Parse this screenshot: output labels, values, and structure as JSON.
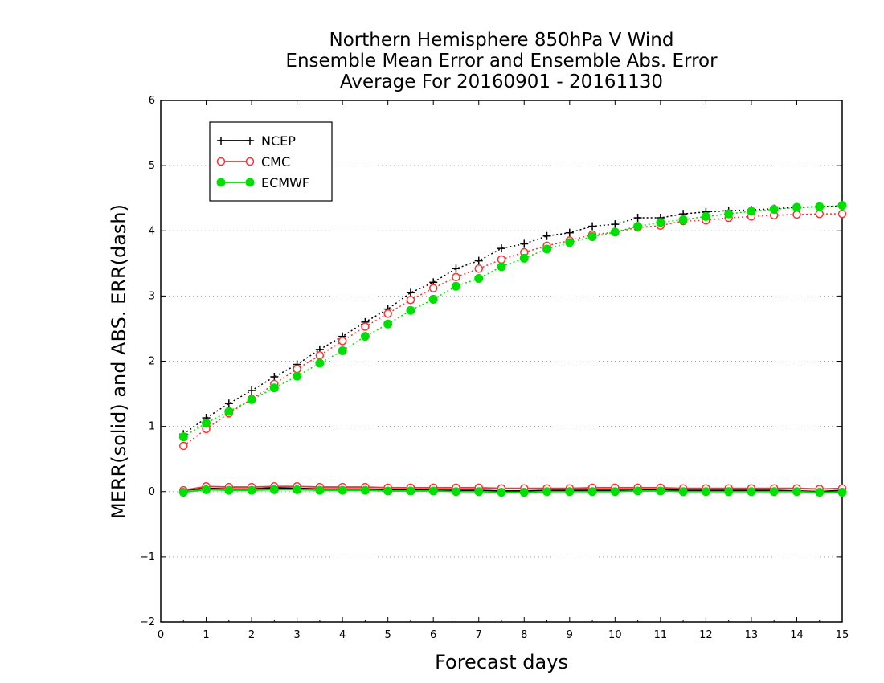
{
  "chart_data": {
    "type": "line",
    "title": [
      "Northern Hemisphere 850hPa V Wind",
      "Ensemble Mean Error and Ensemble Abs. Error",
      "Average For 20160901 - 20161130"
    ],
    "xlabel": "Forecast days",
    "ylabel": "MERR(solid) and ABS. ERR(dash)",
    "xlim": [
      0,
      15
    ],
    "ylim": [
      -2,
      6
    ],
    "xticks": [
      "0",
      "1",
      "2",
      "3",
      "4",
      "5",
      "6",
      "7",
      "8",
      "9",
      "10",
      "11",
      "12",
      "13",
      "14",
      "15"
    ],
    "yticks": [
      "−2",
      "−1",
      "0",
      "1",
      "2",
      "3",
      "4",
      "5",
      "6"
    ],
    "grid": "horizontal dotted",
    "legend_position": "top-left",
    "x": [
      0.5,
      1,
      1.5,
      2,
      2.5,
      3,
      3.5,
      4,
      4.5,
      5,
      5.5,
      6,
      6.5,
      7,
      7.5,
      8,
      8.5,
      9,
      9.5,
      10,
      10.5,
      11,
      11.5,
      12,
      12.5,
      13,
      13.5,
      14,
      14.5,
      15
    ],
    "series": [
      {
        "name": "NCEP",
        "color": "#000000",
        "marker": "plus",
        "abs_err": [
          0.88,
          1.13,
          1.35,
          1.55,
          1.76,
          1.95,
          2.18,
          2.38,
          2.6,
          2.8,
          3.05,
          3.21,
          3.42,
          3.54,
          3.73,
          3.8,
          3.92,
          3.97,
          4.07,
          4.1,
          4.2,
          4.2,
          4.26,
          4.29,
          4.31,
          4.32,
          4.34,
          4.36,
          4.37,
          4.38
        ],
        "mean_err": [
          0.02,
          0.05,
          0.04,
          0.04,
          0.06,
          0.05,
          0.04,
          0.04,
          0.04,
          0.03,
          0.03,
          0.02,
          0.02,
          0.02,
          0.01,
          0.01,
          0.02,
          0.02,
          0.02,
          0.02,
          0.02,
          0.03,
          0.02,
          0.02,
          0.02,
          0.02,
          0.02,
          0.01,
          0.0,
          0.02
        ]
      },
      {
        "name": "CMC",
        "color": "#ff3030",
        "marker": "open-circle",
        "abs_err": [
          0.7,
          0.96,
          1.2,
          1.42,
          1.65,
          1.88,
          2.09,
          2.31,
          2.53,
          2.73,
          2.94,
          3.12,
          3.29,
          3.42,
          3.56,
          3.67,
          3.77,
          3.85,
          3.94,
          3.98,
          4.05,
          4.08,
          4.15,
          4.16,
          4.2,
          4.22,
          4.24,
          4.25,
          4.26,
          4.26
        ],
        "mean_err": [
          0.02,
          0.08,
          0.07,
          0.07,
          0.08,
          0.08,
          0.07,
          0.07,
          0.07,
          0.06,
          0.06,
          0.06,
          0.06,
          0.06,
          0.05,
          0.05,
          0.05,
          0.05,
          0.06,
          0.06,
          0.06,
          0.06,
          0.05,
          0.05,
          0.05,
          0.05,
          0.05,
          0.05,
          0.04,
          0.05
        ]
      },
      {
        "name": "ECMWF",
        "color": "#00e000",
        "marker": "filled-circle",
        "abs_err": [
          0.84,
          1.05,
          1.23,
          1.41,
          1.59,
          1.77,
          1.97,
          2.16,
          2.38,
          2.57,
          2.78,
          2.95,
          3.15,
          3.27,
          3.45,
          3.58,
          3.72,
          3.82,
          3.91,
          3.98,
          4.07,
          4.13,
          4.17,
          4.22,
          4.26,
          4.3,
          4.33,
          4.36,
          4.37,
          4.39
        ],
        "mean_err": [
          -0.01,
          0.03,
          0.02,
          0.02,
          0.03,
          0.03,
          0.02,
          0.02,
          0.02,
          0.01,
          0.01,
          0.01,
          0.0,
          0.0,
          -0.01,
          -0.01,
          0.0,
          0.0,
          0.0,
          0.0,
          0.01,
          0.01,
          0.0,
          0.0,
          0.0,
          0.0,
          0.0,
          0.0,
          -0.01,
          -0.01
        ]
      }
    ]
  }
}
